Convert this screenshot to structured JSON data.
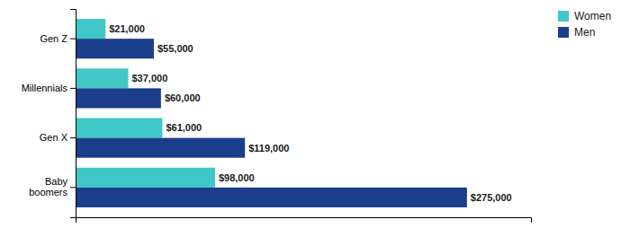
{
  "chart_data": {
    "type": "bar",
    "orientation": "horizontal",
    "categories": [
      "Gen Z",
      "Millennials",
      "Gen X",
      "Baby\nboomers"
    ],
    "series": [
      {
        "name": "Women",
        "color": "#40C8C8",
        "values": [
          21000,
          37000,
          61000,
          98000
        ],
        "value_labels": [
          "$21,000",
          "$37,000",
          "$61,000",
          "$98,000"
        ]
      },
      {
        "name": "Men",
        "color": "#1B3E8C",
        "values": [
          55000,
          60000,
          119000,
          275000
        ],
        "value_labels": [
          "$55,000",
          "$60,000",
          "$119,000",
          "$275,000"
        ]
      }
    ],
    "xlim": [
      0,
      320000
    ],
    "data_labels": true,
    "tick_labels": "y",
    "legend": "upper right"
  }
}
